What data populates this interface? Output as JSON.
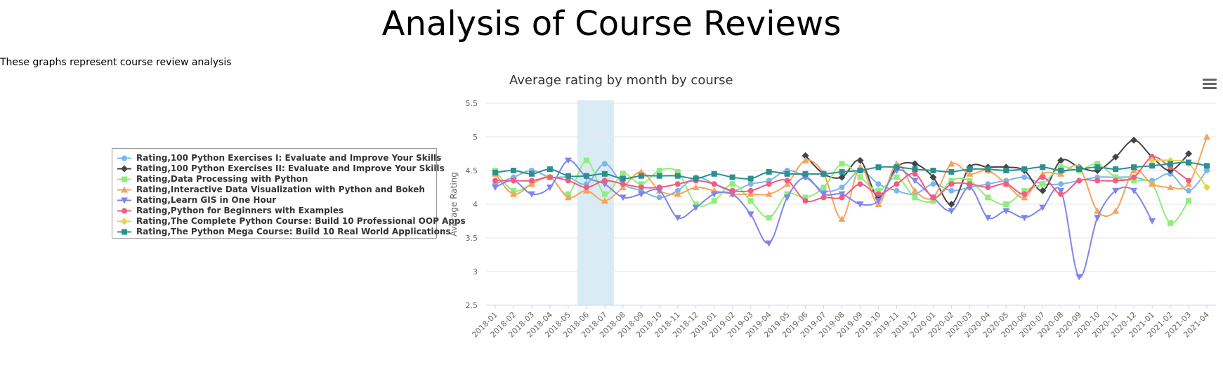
{
  "page": {
    "title": "Analysis of Course Reviews",
    "description": "These graphs represent course review analysis"
  },
  "menu": {
    "icon": "hamburger-menu-icon"
  },
  "chart_data": {
    "type": "line",
    "title": "Average rating by month by course",
    "xlabel": "",
    "ylabel": "Average Rating",
    "ylim": [
      2.5,
      5.5
    ],
    "yticks": [
      "2.5",
      "3",
      "3.5",
      "4",
      "4.5",
      "5",
      "5.5"
    ],
    "grid": "horizontal",
    "legend_position": "left",
    "highlight_band": {
      "from": "2018-06",
      "to": "2018-07",
      "color": "#d9ecf5"
    },
    "categories": [
      "2018-01",
      "2018-02",
      "2018-03",
      "2018-04",
      "2018-05",
      "2018-06",
      "2018-07",
      "2018-08",
      "2018-09",
      "2018-10",
      "2018-11",
      "2018-12",
      "2019-01",
      "2019-02",
      "2019-03",
      "2019-04",
      "2019-05",
      "2019-06",
      "2019-07",
      "2019-08",
      "2019-09",
      "2019-10",
      "2019-11",
      "2019-12",
      "2020-01",
      "2020-02",
      "2020-03",
      "2020-04",
      "2020-05",
      "2020-06",
      "2020-07",
      "2020-08",
      "2020-09",
      "2020-10",
      "2020-11",
      "2020-12",
      "2021-01",
      "2021-02",
      "2021-03",
      "2021-04"
    ],
    "series": [
      {
        "name": "Rating,100 Python Exercises I: Evaluate and Improve Your Skills",
        "color": "#7cb5ec",
        "marker": "circle",
        "values": [
          4.3,
          4.4,
          4.5,
          4.4,
          4.4,
          4.3,
          4.6,
          4.3,
          4.2,
          4.1,
          4.2,
          4.4,
          4.3,
          4.2,
          4.3,
          4.35,
          4.5,
          4.4,
          4.2,
          4.25,
          4.5,
          4.3,
          4.2,
          4.15,
          4.3,
          4.2,
          4.25,
          4.3,
          4.35,
          4.4,
          4.3,
          4.3,
          4.35,
          4.4,
          4.4,
          4.4,
          4.35,
          4.45,
          4.2,
          4.5
        ]
      },
      {
        "name": "Rating,100 Python Exercises II: Evaluate and Improve Your Skills",
        "color": "#434348",
        "marker": "diamond",
        "values": [
          null,
          null,
          null,
          null,
          null,
          null,
          null,
          null,
          null,
          null,
          null,
          null,
          null,
          null,
          null,
          null,
          null,
          4.72,
          4.45,
          4.4,
          4.65,
          4.1,
          4.55,
          4.6,
          4.4,
          4.0,
          4.55,
          4.55,
          4.55,
          4.5,
          4.2,
          4.65,
          4.55,
          4.5,
          4.7,
          4.95,
          4.7,
          4.5,
          4.75,
          null
        ]
      },
      {
        "name": "Rating,Data Processing with Python",
        "color": "#90ed7d",
        "marker": "square",
        "values": [
          4.5,
          4.2,
          4.3,
          4.4,
          4.15,
          4.65,
          4.15,
          4.45,
          4.3,
          4.5,
          4.48,
          4.0,
          4.05,
          4.3,
          4.05,
          3.8,
          4.15,
          4.1,
          4.25,
          4.6,
          4.4,
          4.2,
          4.4,
          4.1,
          4.05,
          4.35,
          4.35,
          4.1,
          4.0,
          4.2,
          4.3,
          4.55,
          4.5,
          4.6,
          4.4,
          4.35,
          4.3,
          3.72,
          4.05,
          null
        ]
      },
      {
        "name": "Rating,Interactive Data Visualization with Python and Bokeh",
        "color": "#f7a35c",
        "marker": "triangle",
        "values": [
          4.45,
          4.15,
          4.3,
          4.4,
          4.1,
          4.2,
          4.05,
          4.25,
          4.48,
          4.2,
          4.15,
          4.25,
          4.2,
          4.15,
          4.15,
          4.15,
          4.3,
          4.65,
          4.45,
          3.78,
          4.55,
          4.0,
          4.6,
          4.2,
          4.1,
          4.6,
          4.45,
          4.5,
          4.3,
          4.1,
          4.45,
          4.45,
          4.55,
          3.9,
          3.9,
          4.5,
          4.3,
          4.25,
          4.3,
          5.0
        ]
      },
      {
        "name": "Rating,Learn GIS in One Hour",
        "color": "#8085e9",
        "marker": "triangle-down",
        "values": [
          4.25,
          4.35,
          4.15,
          4.25,
          4.65,
          4.4,
          4.3,
          4.1,
          4.15,
          4.2,
          3.8,
          3.95,
          4.15,
          4.15,
          3.85,
          3.42,
          4.1,
          4.4,
          4.15,
          4.15,
          4.0,
          4.05,
          4.5,
          4.35,
          4.1,
          3.9,
          4.25,
          3.8,
          3.9,
          3.8,
          3.95,
          4.2,
          2.92,
          3.8,
          4.2,
          4.2,
          3.75,
          null,
          null,
          null
        ]
      },
      {
        "name": "Rating,Python for Beginners with Examples",
        "color": "#f15c80",
        "marker": "circle",
        "values": [
          4.35,
          4.35,
          4.35,
          4.4,
          4.35,
          4.25,
          4.35,
          4.3,
          4.25,
          4.25,
          4.3,
          4.35,
          4.3,
          4.2,
          4.2,
          4.3,
          4.35,
          4.05,
          4.1,
          4.1,
          4.3,
          4.15,
          4.3,
          4.45,
          4.1,
          4.3,
          4.3,
          4.25,
          4.3,
          4.15,
          4.4,
          4.15,
          4.35,
          4.35,
          4.35,
          4.4,
          4.7,
          4.55,
          4.35,
          null
        ]
      },
      {
        "name": "Rating,The Complete Python Course: Build 10 Professional OOP Apps",
        "color": "#e4d354",
        "marker": "diamond",
        "values": [
          null,
          null,
          null,
          null,
          null,
          null,
          null,
          null,
          null,
          null,
          null,
          null,
          null,
          null,
          null,
          null,
          null,
          null,
          null,
          null,
          null,
          null,
          null,
          null,
          null,
          null,
          null,
          null,
          null,
          null,
          null,
          null,
          null,
          null,
          null,
          null,
          4.65,
          4.65,
          4.6,
          4.25
        ]
      },
      {
        "name": "Rating,The Python Mega Course: Build 10 Real World Applications",
        "color": "#2b908f",
        "marker": "square",
        "values": [
          4.47,
          4.5,
          4.45,
          4.52,
          4.42,
          4.42,
          4.45,
          4.38,
          4.42,
          4.42,
          4.42,
          4.38,
          4.45,
          4.4,
          4.38,
          4.48,
          4.45,
          4.45,
          4.45,
          4.48,
          4.5,
          4.55,
          4.55,
          4.52,
          4.5,
          4.48,
          4.52,
          4.52,
          4.5,
          4.52,
          4.55,
          4.5,
          4.52,
          4.55,
          4.52,
          4.55,
          4.57,
          4.6,
          4.62,
          4.57
        ]
      }
    ]
  }
}
